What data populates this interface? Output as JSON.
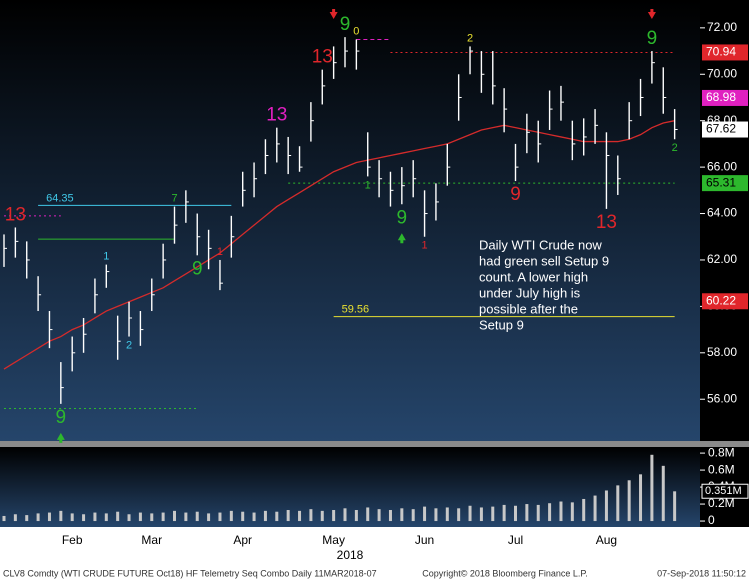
{
  "chart_data": {
    "type": "ohlc",
    "x_label": "2018",
    "categories": [
      null,
      null,
      null,
      null,
      null,
      null,
      "Feb",
      null,
      null,
      null,
      null,
      null,
      null,
      "Mar",
      null,
      null,
      null,
      null,
      null,
      null,
      null,
      "Apr",
      null,
      null,
      null,
      null,
      null,
      null,
      null,
      "May",
      null,
      null,
      null,
      null,
      null,
      null,
      null,
      "Jun",
      null,
      null,
      null,
      null,
      null,
      null,
      null,
      "Jul",
      null,
      null,
      null,
      null,
      null,
      null,
      null,
      "Aug",
      null,
      null,
      null,
      null,
      null,
      null
    ],
    "high": [
      63.1,
      63.4,
      62.8,
      61.3,
      59.8,
      57.6,
      58.7,
      59.5,
      61.2,
      61.8,
      59.6,
      60.2,
      59.8,
      61.2,
      62.7,
      64.3,
      65,
      64,
      63.3,
      62,
      63.9,
      65.8,
      66.2,
      67.2,
      67.7,
      67.3,
      66.9,
      68.8,
      70.2,
      71.2,
      71.6,
      71.5,
      67.5,
      66.3,
      65.8,
      66,
      66.3,
      65,
      65.3,
      67,
      70,
      71.2,
      71,
      71,
      69.4,
      67,
      68.3,
      68,
      69.3,
      69.5,
      68,
      68.1,
      68.5,
      67.5,
      66.5,
      68.8,
      69.8,
      71,
      70.3,
      68.5
    ],
    "low": [
      61.7,
      62.1,
      61.2,
      59.8,
      58.2,
      55.8,
      57.2,
      58,
      59.7,
      60.8,
      57.7,
      58.7,
      58.3,
      59.8,
      61.2,
      62.7,
      63.6,
      62.2,
      61.6,
      60.7,
      62.1,
      64.3,
      64.7,
      65.7,
      66.2,
      65.7,
      65.8,
      67.1,
      68.7,
      69.8,
      70.3,
      70.2,
      65.6,
      64.7,
      64.3,
      64.4,
      64.7,
      63,
      63.7,
      65.2,
      68,
      70,
      69.2,
      68.7,
      67.5,
      65.4,
      66.6,
      66.2,
      67.6,
      68,
      66.3,
      66.5,
      67,
      64.2,
      64.8,
      67.2,
      68.2,
      69.6,
      68.3,
      67.2
    ],
    "close": [
      62.5,
      62.8,
      62,
      60.5,
      59,
      56.5,
      58,
      58.8,
      60.5,
      61.5,
      58.5,
      59.5,
      59,
      60.5,
      62,
      63.5,
      64.5,
      63,
      62.5,
      61,
      63,
      65,
      65.5,
      66.5,
      67,
      66.5,
      66,
      68,
      69.5,
      70.5,
      71,
      71,
      66,
      65.5,
      65,
      65.2,
      65.5,
      64,
      64.5,
      66,
      69,
      71,
      70,
      69.5,
      68.5,
      66,
      67.5,
      67,
      68.5,
      68.8,
      67,
      67.3,
      67.8,
      66.5,
      65.5,
      68,
      69,
      70.5,
      69,
      67.62
    ],
    "bar_color": "#ffffff",
    "moving_average": {
      "color": "#d42b2b",
      "values": [
        57.3,
        57.6,
        57.9,
        58.2,
        58.5,
        58.7,
        59,
        59.2,
        59.5,
        59.8,
        60,
        60.2,
        60.4,
        60.6,
        60.8,
        61.1,
        61.4,
        61.7,
        62,
        62.3,
        62.7,
        63.1,
        63.5,
        63.9,
        64.3,
        64.6,
        64.9,
        65.2,
        65.5,
        65.8,
        66,
        66.2,
        66.3,
        66.4,
        66.5,
        66.6,
        66.7,
        66.8,
        66.9,
        67,
        67.2,
        67.4,
        67.6,
        67.7,
        67.8,
        67.7,
        67.6,
        67.5,
        67.4,
        67.3,
        67.2,
        67.1,
        67.1,
        67.1,
        67.1,
        67.2,
        67.4,
        67.7,
        67.9,
        68
      ]
    },
    "ylim": [
      54.2,
      73.2
    ],
    "yticks": [
      {
        "value": 72,
        "label": "72.00"
      },
      {
        "value": 70,
        "label": "70.00"
      },
      {
        "value": 68,
        "label": "68.00"
      },
      {
        "value": 66,
        "label": "66.00"
      },
      {
        "value": 64,
        "label": "64.00"
      },
      {
        "value": 62,
        "label": "62.00"
      },
      {
        "value": 60,
        "label": "60.00"
      },
      {
        "value": 58,
        "label": "58.00"
      },
      {
        "value": 56,
        "label": "56.00"
      }
    ],
    "price_labels": [
      {
        "value": 70.94,
        "color": "#e0262b",
        "text_color": "#ffffff"
      },
      {
        "value": 68.98,
        "color": "#e020c0",
        "text_color": "#ffffff"
      },
      {
        "value": 67.62,
        "color": "#ffffff",
        "text_color": "#000000"
      },
      {
        "value": 65.31,
        "color": "#2db82d",
        "text_color": "#000000"
      },
      {
        "value": 60.22,
        "color": "#e0262b",
        "text_color": "#ffffff"
      }
    ],
    "levels": [
      {
        "value": 64.35,
        "color": "#40c8e8",
        "from": 3,
        "to": 20,
        "dash": "none",
        "label_shown": true
      },
      {
        "value": 59.56,
        "color": "#e8e030",
        "from": 29,
        "to": 59,
        "dash": "none",
        "label_shown": true
      },
      {
        "value": 62.9,
        "color": "#2db82d",
        "from": 3,
        "to": 15,
        "dash": "none",
        "label_shown": false
      },
      {
        "value": 70.94,
        "color": "#e0262b",
        "from": 34,
        "to": 59,
        "dash": "2 3",
        "label_shown": false
      },
      {
        "value": 65.31,
        "color": "#2db82d",
        "from": 25,
        "to": 59,
        "dash": "2 3",
        "label_shown": false
      },
      {
        "value": 55.6,
        "color": "#2db82d",
        "from": 0,
        "to": 17,
        "dash": "2 3",
        "label_shown": false
      },
      {
        "value": 71.5,
        "color": "#e020c0",
        "from": 31,
        "to": 34,
        "dash": "4 3",
        "label_shown": false
      },
      {
        "value": 63.9,
        "color": "#e020c0",
        "from": 0,
        "to": 5,
        "dash": "2 3",
        "label_shown": false
      }
    ],
    "td_counts": [
      {
        "text": "13",
        "bar": 1,
        "side": "above",
        "color": "#e0262b"
      },
      {
        "text": "9",
        "bar": 5,
        "side": "below",
        "color": "#2db82d"
      },
      {
        "text": "1",
        "bar": 9,
        "side": "above",
        "color": "#40c8e8"
      },
      {
        "text": "2",
        "bar": 11,
        "side": "below",
        "color": "#40c8e8"
      },
      {
        "text": "7",
        "bar": 15,
        "side": "above",
        "color": "#2db82d"
      },
      {
        "text": "9",
        "bar": 17,
        "side": "below",
        "color": "#2db82d"
      },
      {
        "text": "1",
        "bar": 19,
        "side": "above",
        "color": "#e0262b"
      },
      {
        "text": "13",
        "bar": 24,
        "side": "above",
        "color": "#e020c0"
      },
      {
        "text": "13",
        "bar": 28,
        "side": "above",
        "color": "#e0262b"
      },
      {
        "text": "9",
        "bar": 30,
        "side": "above",
        "color": "#2db82d"
      },
      {
        "text": "0",
        "bar": 31,
        "side": "above",
        "color": "#e8e030"
      },
      {
        "text": "1",
        "bar": 32,
        "side": "below",
        "color": "#2db82d"
      },
      {
        "text": "9",
        "bar": 35,
        "side": "below",
        "color": "#2db82d"
      },
      {
        "text": "1",
        "bar": 37,
        "side": "below",
        "color": "#e0262b"
      },
      {
        "text": "2",
        "bar": 41,
        "side": "above",
        "color": "#e8e030"
      },
      {
        "text": "9",
        "bar": 45,
        "side": "below",
        "color": "#e0262b"
      },
      {
        "text": "13",
        "bar": 53,
        "side": "below",
        "color": "#e0262b"
      },
      {
        "text": "9",
        "bar": 57,
        "side": "above",
        "color": "#2db82d"
      },
      {
        "text": "2",
        "bar": 59,
        "side": "below",
        "color": "#2db82d"
      }
    ],
    "arrows": [
      {
        "bar": 5,
        "dir": "up",
        "color": "#2db82d"
      },
      {
        "bar": 29,
        "dir": "down",
        "color": "#e0262b"
      },
      {
        "bar": 35,
        "dir": "up",
        "color": "#2db82d"
      },
      {
        "bar": 57,
        "dir": "down",
        "color": "#e0262b"
      }
    ],
    "annotation": [
      "Daily WTI Crude now",
      "had green sell Setup 9",
      "count.  A lower high",
      "under July high is",
      "possible after the",
      "Setup 9"
    ],
    "volume": {
      "color": "#c8c8c8",
      "values": [
        0.06,
        0.08,
        0.07,
        0.09,
        0.1,
        0.12,
        0.09,
        0.08,
        0.1,
        0.09,
        0.11,
        0.08,
        0.1,
        0.09,
        0.1,
        0.12,
        0.1,
        0.11,
        0.09,
        0.1,
        0.12,
        0.11,
        0.1,
        0.12,
        0.11,
        0.13,
        0.12,
        0.14,
        0.12,
        0.13,
        0.15,
        0.13,
        0.16,
        0.14,
        0.13,
        0.15,
        0.14,
        0.17,
        0.15,
        0.16,
        0.15,
        0.18,
        0.16,
        0.17,
        0.19,
        0.18,
        0.2,
        0.19,
        0.21,
        0.23,
        0.22,
        0.26,
        0.3,
        0.36,
        0.42,
        0.48,
        0.55,
        0.78,
        0.65,
        0.35
      ],
      "ylim": [
        -0.07,
        0.86
      ],
      "yticks": [
        {
          "value": 0.8,
          "label": "0.8M"
        },
        {
          "value": 0.6,
          "label": "0.6M"
        },
        {
          "value": 0.4,
          "label": "0.4M"
        },
        {
          "value": 0.2,
          "label": "0.2M"
        },
        0
      ],
      "last": {
        "value": 0.351,
        "label": "0.351M"
      }
    },
    "footer": {
      "left": "CLV8 Comdty (WTI CRUDE FUTURE  Oct18) HF Telemetry Seq Combo  Daily 11MAR2018-07",
      "center": "Copyright© 2018 Bloomberg Finance L.P.",
      "right": "07-Sep-2018 11:50:12"
    }
  }
}
